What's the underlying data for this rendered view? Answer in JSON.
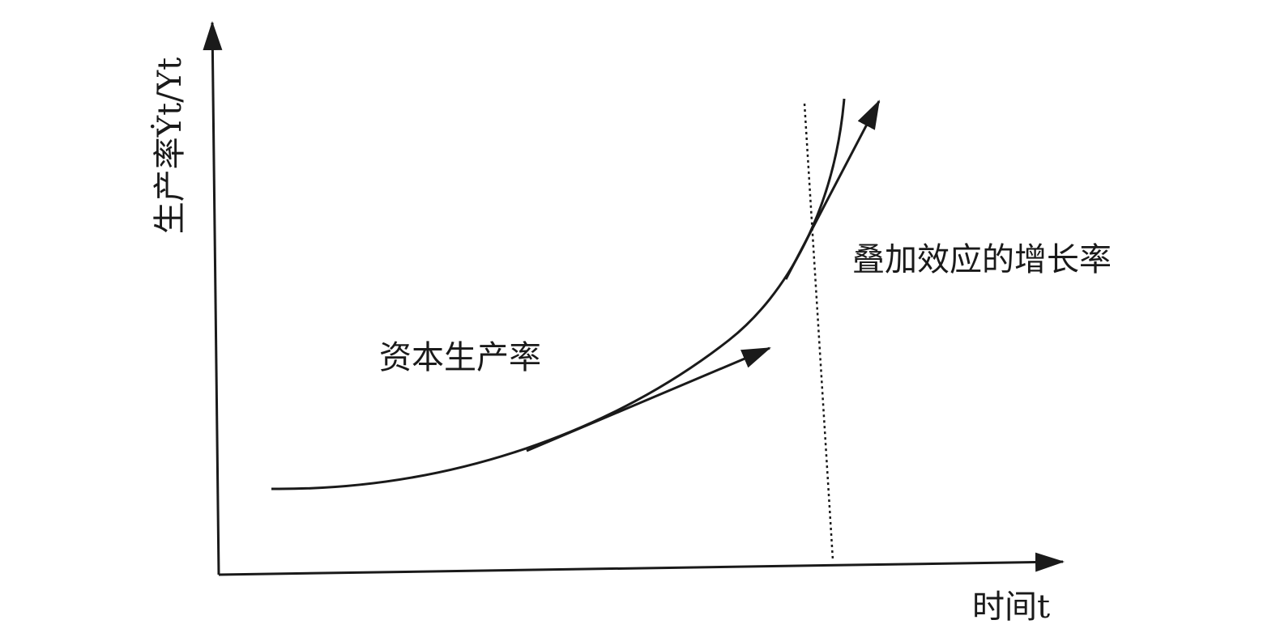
{
  "diagram": {
    "y_axis_label": "生产率Ẏt/Yt",
    "x_axis_label": "时间t",
    "curve_label": "资本生产率",
    "tangent_label": "叠加效应的增长率",
    "colors": {
      "line": "#1a1a1a",
      "background": "#ffffff"
    }
  }
}
